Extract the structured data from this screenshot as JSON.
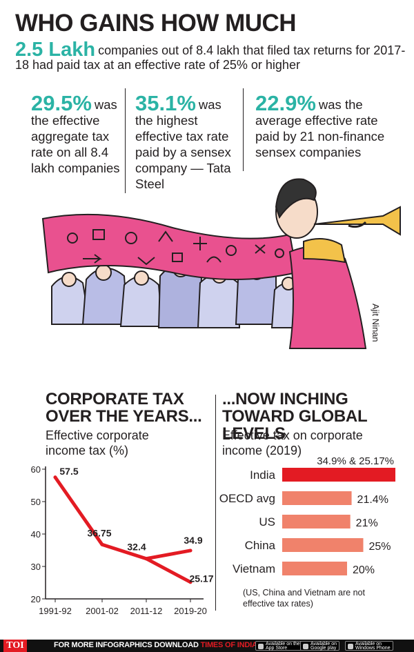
{
  "header": {
    "title": "WHO GAINS HOW MUCH",
    "lead_value": "2.5 Lakh",
    "lead_text": "companies out of 8.4 lakh that filed tax returns for 2017-18 had paid tax at an effective rate of 25% or higher"
  },
  "stats": [
    {
      "value": "29.5%",
      "text": "was the effective aggregate tax rate on all 8.4 lakh companies"
    },
    {
      "value": "35.1%",
      "text": "was the highest effective tax rate paid by a sensex company — Tata Steel"
    },
    {
      "value": "22.9%",
      "text": "was the average effective rate paid by 21 non-finance sensex companies"
    }
  ],
  "credit": "Ajit Ninan",
  "colors": {
    "teal": "#2bb3a5",
    "red_line": "#e31b23",
    "india_bar": "#e31b23",
    "other_bar": "#f0826b",
    "sari_pink": "#e9518f"
  },
  "chart_data": [
    {
      "type": "line",
      "title": "CORPORATE TAX OVER THE YEARS...",
      "subtitle": "Effective corporate income tax (%)",
      "x": [
        "1991-92",
        "2001-02",
        "2011-12",
        "2019-20"
      ],
      "y_ticks": [
        "20",
        "30",
        "40",
        "50",
        "60"
      ],
      "ylim": [
        20,
        60
      ],
      "series": [
        {
          "values": [
            57.5,
            36.75,
            32.4,
            25.17
          ],
          "labels": [
            "57.5",
            "36.75",
            "32.4",
            "25.17"
          ]
        },
        {
          "values": [
            null,
            null,
            32.4,
            34.9
          ],
          "labels": [
            "",
            "",
            "",
            "34.9"
          ]
        }
      ]
    },
    {
      "type": "bar",
      "orientation": "horizontal",
      "title": "...NOW INCHING TOWARD GLOBAL LEVELS",
      "subtitle": "Effective tax on corporate income (2019)",
      "categories": [
        "India",
        "OECD avg",
        "US",
        "China",
        "Vietnam"
      ],
      "values": [
        34.9,
        21.4,
        21,
        25,
        20
      ],
      "labels": [
        "34.9% & 25.17%",
        "21.4%",
        "21%",
        "25%",
        "20%"
      ],
      "note": "(US, China and Vietnam are not effective tax rates)"
    }
  ],
  "footer": {
    "logo": "TOI",
    "text_white": "FOR MORE INFOGRAPHICS DOWNLOAD ",
    "text_red": "TIMES OF INDIA APP",
    "store1_small": "Available on the",
    "store1": "App Store",
    "store2_small": "Available on",
    "store2": "Google play",
    "store3_small": "Available on",
    "store3": "Windows Phone"
  }
}
